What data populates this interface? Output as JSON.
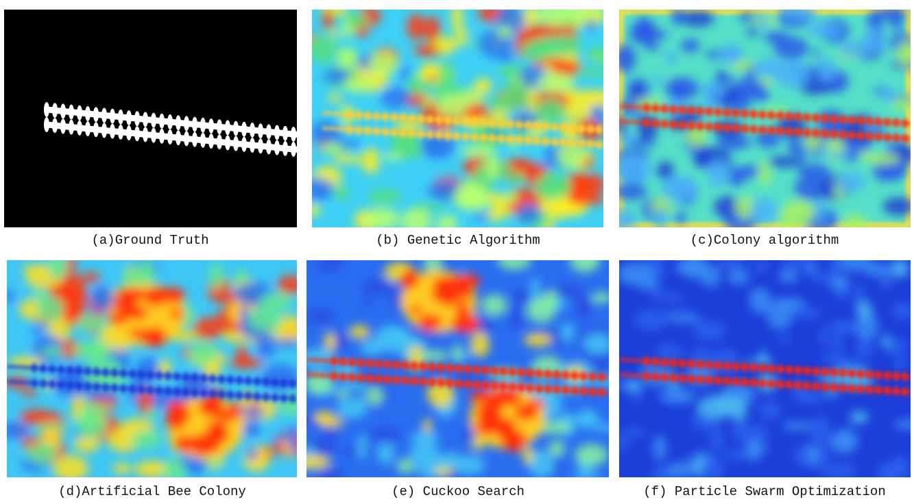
{
  "panels": [
    {
      "caption": "(a)Ground Truth"
    },
    {
      "caption": "(b) Genetic Algorithm"
    },
    {
      "caption": "(c)Colony algorithm"
    },
    {
      "caption": "(d)Artificial Bee Colony"
    },
    {
      "caption": "(e) Cuckoo Search"
    },
    {
      "caption": "(f) Particle Swarm Optimization"
    }
  ]
}
